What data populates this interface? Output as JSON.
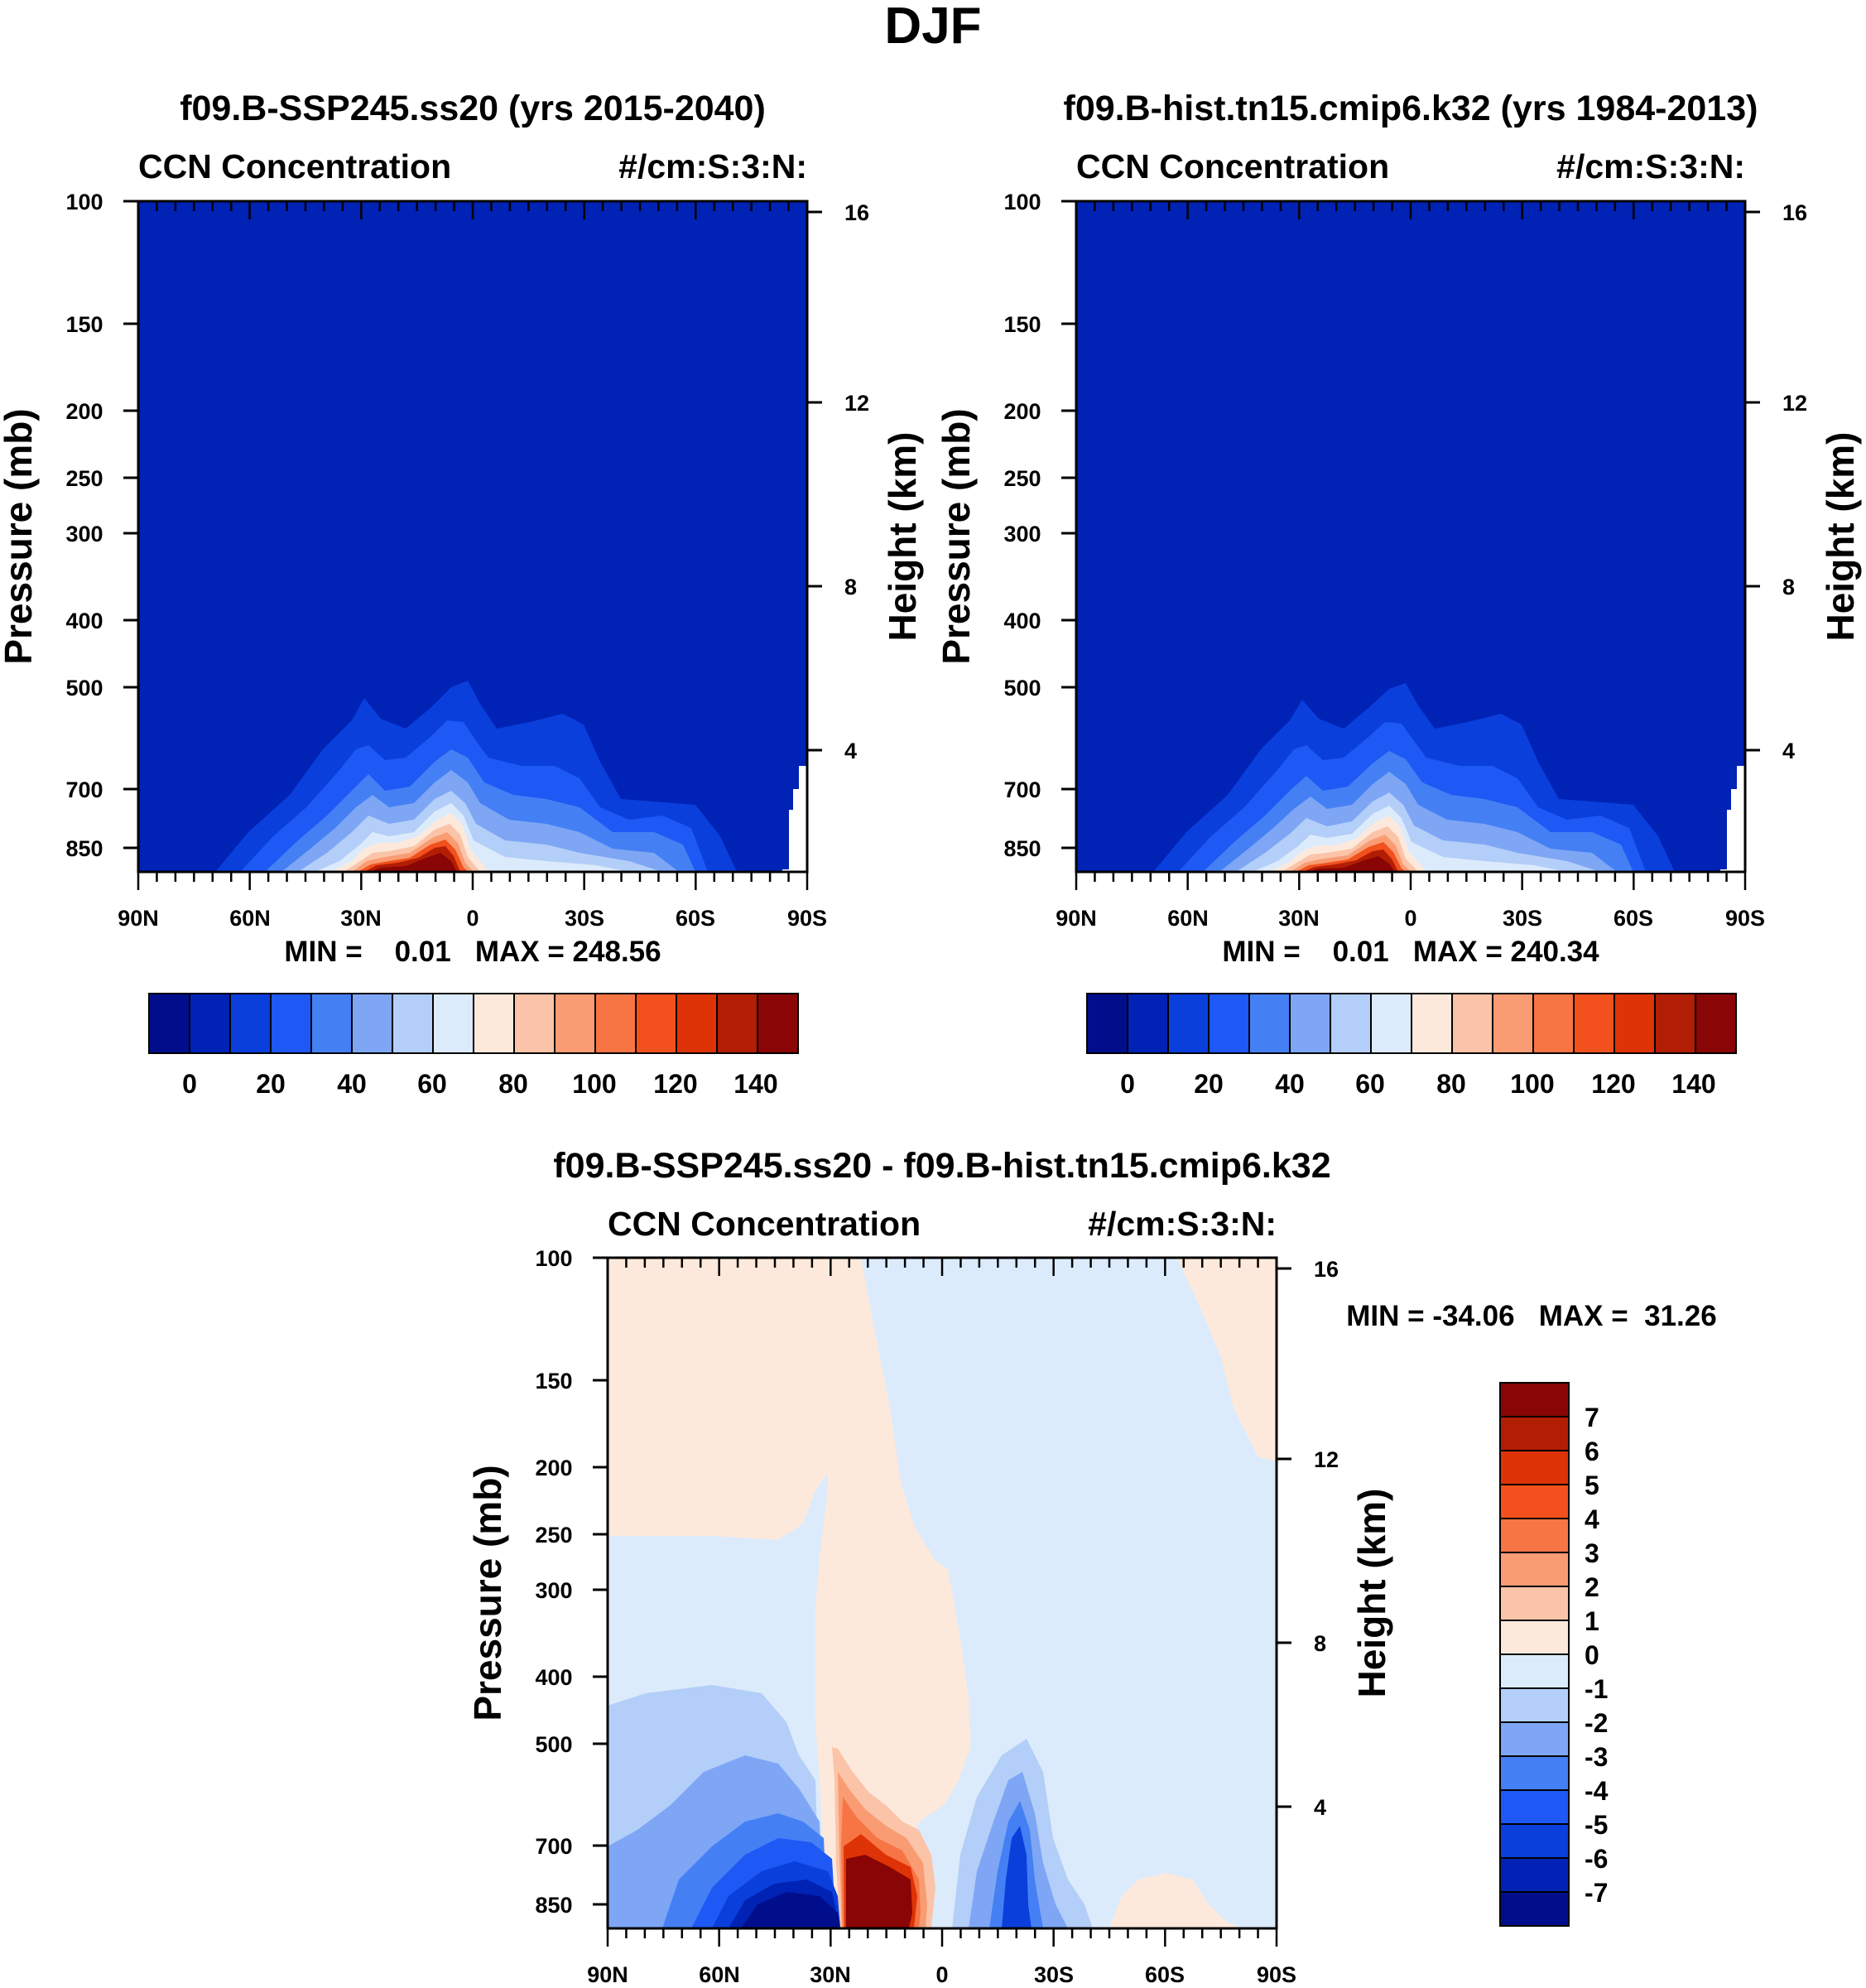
{
  "figure": {
    "title": "DJF"
  },
  "colors": {
    "blue_levels": [
      "#000e8c",
      "#0022b5",
      "#0a3fdc",
      "#1e58f5",
      "#4480f4",
      "#7ea6f5",
      "#b3cef8",
      "#dcebfb"
    ],
    "red_levels": [
      "#fde9dc",
      "#fbc4a8",
      "#f99c73",
      "#f77545",
      "#f2501d",
      "#de3307",
      "#b21e04",
      "#8a0505"
    ],
    "background_field": "#0022b5"
  },
  "chart_data": [
    {
      "type": "contour",
      "id": "panel-a",
      "title": "f09.B-SSP245.ss20 (yrs 2015-2040)",
      "left_label": "CCN Concentration",
      "right_label": "#/cm:S:3:N:",
      "ylabel": "Pressure (mb)",
      "ylabel_right": "Height (km)",
      "x_ticks": [
        "90N",
        "60N",
        "30N",
        "0",
        "30S",
        "60S",
        "90S"
      ],
      "y_ticks": [
        "100",
        "150",
        "200",
        "250",
        "300",
        "400",
        "500",
        "700",
        "850"
      ],
      "y_ticks_right": [
        "16",
        "12",
        "8",
        "4"
      ],
      "min_max_text": "MIN =    0.01   MAX = 248.56",
      "min": 0.01,
      "max": 248.56,
      "colorbar_labels": [
        "0",
        "20",
        "40",
        "60",
        "80",
        "100",
        "120",
        "140"
      ],
      "colorbar_levels": [
        0,
        10,
        20,
        30,
        40,
        50,
        60,
        70,
        80,
        90,
        100,
        110,
        120,
        130,
        140
      ]
    },
    {
      "type": "contour",
      "id": "panel-b",
      "title": "f09.B-hist.tn15.cmip6.k32 (yrs 1984-2013)",
      "left_label": "CCN Concentration",
      "right_label": "#/cm:S:3:N:",
      "ylabel": "Pressure (mb)",
      "ylabel_right": "Height (km)",
      "x_ticks": [
        "90N",
        "60N",
        "30N",
        "0",
        "30S",
        "60S",
        "90S"
      ],
      "y_ticks": [
        "100",
        "150",
        "200",
        "250",
        "300",
        "400",
        "500",
        "700",
        "850"
      ],
      "y_ticks_right": [
        "16",
        "12",
        "8",
        "4"
      ],
      "min_max_text": "MIN =    0.01   MAX = 240.34",
      "min": 0.01,
      "max": 240.34,
      "colorbar_labels": [
        "0",
        "20",
        "40",
        "60",
        "80",
        "100",
        "120",
        "140"
      ],
      "colorbar_levels": [
        0,
        10,
        20,
        30,
        40,
        50,
        60,
        70,
        80,
        90,
        100,
        110,
        120,
        130,
        140
      ]
    },
    {
      "type": "contour",
      "id": "panel-c",
      "title": "f09.B-SSP245.ss20 - f09.B-hist.tn15.cmip6.k32",
      "left_label": "CCN Concentration",
      "right_label": "#/cm:S:3:N:",
      "ylabel": "Pressure (mb)",
      "ylabel_right": "Height (km)",
      "x_ticks": [
        "90N",
        "60N",
        "30N",
        "0",
        "30S",
        "60S",
        "90S"
      ],
      "y_ticks": [
        "100",
        "150",
        "200",
        "250",
        "300",
        "400",
        "500",
        "700",
        "850"
      ],
      "y_ticks_right": [
        "16",
        "12",
        "8",
        "4"
      ],
      "min_max_text": "MIN = -34.06   MAX =  31.26",
      "min": -34.06,
      "max": 31.26,
      "colorbar_labels": [
        "7",
        "6",
        "5",
        "4",
        "3",
        "2",
        "1",
        "0",
        "-1",
        "-2",
        "-3",
        "-4",
        "-5",
        "-6",
        "-7"
      ],
      "colorbar_levels": [
        -7,
        -6,
        -5,
        -4,
        -3,
        -2,
        -1,
        0,
        1,
        2,
        3,
        4,
        5,
        6,
        7
      ]
    }
  ]
}
